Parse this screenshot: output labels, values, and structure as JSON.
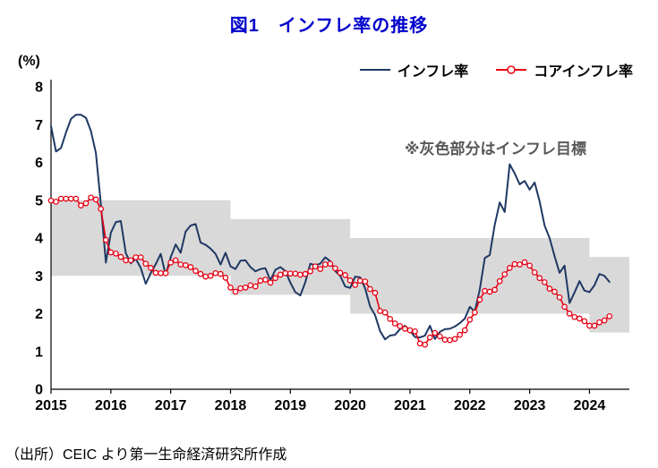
{
  "page": {
    "title_color": "#0000cc",
    "source_note": "（出所）CEIC より第一生命経済研究所作成"
  },
  "chart_data": {
    "type": "line",
    "title": "図1　インフレ率の推移",
    "ylabel": "(%)",
    "ylim": [
      0,
      8
    ],
    "y_ticks": [
      0,
      1,
      2,
      3,
      4,
      5,
      6,
      7,
      8
    ],
    "x_ticks": [
      "2015",
      "2016",
      "2017",
      "2018",
      "2019",
      "2020",
      "2021",
      "2022",
      "2023",
      "2024"
    ],
    "x_start": "2015-01",
    "x_frequency": "monthly",
    "x_axis_months": 116,
    "grid": false,
    "legend_position": "top-right",
    "annotation": "※灰色部分はインフレ目標",
    "band_color": "#d9d9d9",
    "target_bands": [
      {
        "start_month": 0,
        "end_month": 36,
        "low": 3,
        "high": 5
      },
      {
        "start_month": 36,
        "end_month": 60,
        "low": 2.5,
        "high": 4.5
      },
      {
        "start_month": 60,
        "end_month": 108,
        "low": 2,
        "high": 4
      },
      {
        "start_month": 108,
        "end_month": 116,
        "low": 1.5,
        "high": 3.5
      }
    ],
    "series": [
      {
        "name": "インフレ率",
        "color": "#1f3864",
        "marker": "none",
        "values": [
          6.96,
          6.29,
          6.38,
          6.79,
          7.15,
          7.26,
          7.26,
          7.18,
          6.83,
          6.25,
          4.89,
          3.35,
          4.14,
          4.42,
          4.45,
          3.6,
          3.33,
          3.45,
          3.21,
          2.79,
          3.07,
          3.31,
          3.58,
          3.02,
          3.49,
          3.83,
          3.61,
          4.17,
          4.33,
          4.37,
          3.88,
          3.82,
          3.72,
          3.58,
          3.3,
          3.61,
          3.25,
          3.18,
          3.4,
          3.41,
          3.23,
          3.12,
          3.18,
          3.2,
          2.88,
          3.16,
          3.23,
          3.13,
          2.82,
          2.57,
          2.48,
          2.83,
          3.32,
          3.28,
          3.32,
          3.49,
          3.39,
          3.13,
          3.0,
          2.72,
          2.68,
          2.98,
          2.96,
          2.67,
          2.19,
          1.96,
          1.54,
          1.32,
          1.42,
          1.44,
          1.59,
          1.68,
          1.55,
          1.38,
          1.37,
          1.42,
          1.68,
          1.33,
          1.52,
          1.59,
          1.6,
          1.66,
          1.75,
          1.87,
          2.18,
          2.06,
          2.64,
          3.47,
          3.55,
          4.35,
          4.94,
          4.69,
          5.95,
          5.71,
          5.42,
          5.51,
          5.28,
          5.47,
          4.97,
          4.33,
          4.0,
          3.52,
          3.08,
          3.27,
          2.28,
          2.56,
          2.86,
          2.61,
          2.57,
          2.75,
          3.05,
          3.0,
          2.84
        ]
      },
      {
        "name": "コアインフレ率",
        "color": "#e60012",
        "marker": "circle-open",
        "values": [
          4.99,
          4.96,
          5.04,
          5.04,
          5.04,
          5.04,
          4.86,
          4.92,
          5.07,
          5.02,
          4.77,
          3.95,
          3.62,
          3.59,
          3.5,
          3.41,
          3.41,
          3.49,
          3.49,
          3.32,
          3.21,
          3.08,
          3.07,
          3.07,
          3.35,
          3.41,
          3.3,
          3.28,
          3.23,
          3.13,
          3.05,
          2.98,
          3.0,
          3.07,
          3.05,
          2.95,
          2.69,
          2.58,
          2.67,
          2.69,
          2.75,
          2.72,
          2.87,
          2.9,
          2.82,
          2.94,
          3.03,
          3.07,
          3.06,
          3.06,
          3.03,
          3.05,
          3.12,
          3.25,
          3.18,
          3.3,
          3.32,
          3.2,
          3.08,
          3.02,
          2.88,
          2.76,
          2.87,
          2.85,
          2.65,
          2.55,
          2.07,
          2.03,
          1.86,
          1.74,
          1.67,
          1.6,
          1.56,
          1.53,
          1.21,
          1.18,
          1.37,
          1.49,
          1.4,
          1.31,
          1.3,
          1.33,
          1.44,
          1.56,
          1.84,
          2.03,
          2.37,
          2.6,
          2.58,
          2.63,
          2.86,
          3.04,
          3.21,
          3.31,
          3.3,
          3.36,
          3.27,
          3.09,
          2.94,
          2.83,
          2.66,
          2.58,
          2.43,
          2.18,
          2.0,
          1.91,
          1.87,
          1.8,
          1.68,
          1.68,
          1.77,
          1.82,
          1.93
        ]
      }
    ]
  }
}
